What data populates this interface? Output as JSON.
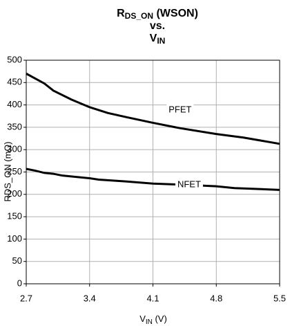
{
  "chart_data": {
    "type": "line",
    "title": {
      "line1": {
        "text": "R",
        "sub": "DS_ON",
        "suffix": " (WSON)"
      },
      "line2": "vs.",
      "line3": {
        "text": "V",
        "sub": "IN"
      }
    },
    "x_label": {
      "text": "V",
      "sub": "IN",
      "suffix": " (V)"
    },
    "y_label": "RDS_ON (mΩ)",
    "series": [
      {
        "name": "PFET",
        "color": "#000000",
        "x": [
          2.7,
          2.9,
          3.0,
          3.2,
          3.4,
          3.6,
          3.8,
          4.1,
          4.4,
          4.8,
          5.1,
          5.5
        ],
        "values": [
          470,
          448,
          432,
          412,
          395,
          382,
          373,
          360,
          348,
          335,
          327,
          313
        ]
      },
      {
        "name": "NFET",
        "color": "#000000",
        "x": [
          2.7,
          2.8,
          2.9,
          3.0,
          3.1,
          3.4,
          3.5,
          3.8,
          4.1,
          4.5,
          4.8,
          5.0,
          5.5
        ],
        "values": [
          257,
          253,
          248,
          246,
          242,
          236,
          233,
          229,
          224,
          221,
          218,
          214,
          210
        ]
      }
    ],
    "xlim": [
      2.7,
      5.5
    ],
    "xticks": [
      2.7,
      3.4,
      4.1,
      4.8,
      5.5
    ],
    "ylim": [
      0,
      500
    ],
    "yticks": [
      0,
      50,
      100,
      150,
      200,
      250,
      300,
      350,
      400,
      450,
      500
    ],
    "grid": true
  }
}
